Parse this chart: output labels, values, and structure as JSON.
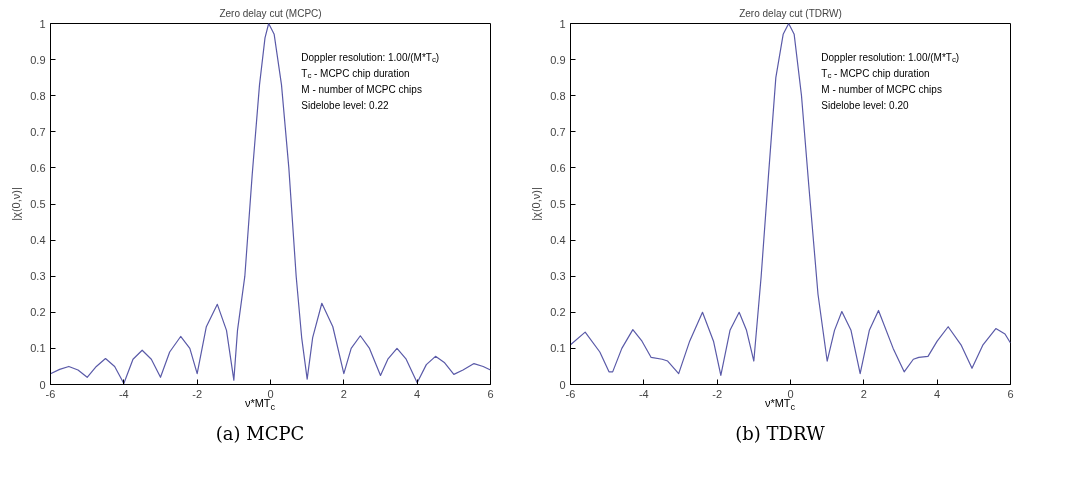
{
  "chart_data": [
    {
      "type": "line",
      "title": "Zero delay cut (MCPC)",
      "xlabel": "ν*MT$_{c}$",
      "ylabel": "|χ(0,ν)|",
      "x": [
        -6,
        -5.75,
        -5.5,
        -5.25,
        -5,
        -4.75,
        -4.5,
        -4.25,
        -4,
        -3.75,
        -3.5,
        -3.25,
        -3,
        -2.75,
        -2.45,
        -2.2,
        -2,
        -1.75,
        -1.45,
        -1.2,
        -1,
        -0.9,
        -0.7,
        -0.5,
        -0.3,
        -0.15,
        -0.05,
        0.1,
        0.3,
        0.5,
        0.7,
        0.85,
        1,
        1.15,
        1.4,
        1.7,
        2,
        2.2,
        2.45,
        2.7,
        3,
        3.2,
        3.45,
        3.7,
        4,
        4.25,
        4.5,
        4.75,
        5,
        5.25,
        5.55,
        5.8,
        6
      ],
      "series": [
        {
          "color": "#5a5aa8",
          "values": [
            0.03,
            0.042,
            0.05,
            0.04,
            0.02,
            0.05,
            0.072,
            0.05,
            0.003,
            0.07,
            0.095,
            0.07,
            0.02,
            0.09,
            0.133,
            0.1,
            0.03,
            0.16,
            0.222,
            0.15,
            0.012,
            0.15,
            0.3,
            0.58,
            0.83,
            0.96,
            1,
            0.97,
            0.83,
            0.6,
            0.3,
            0.13,
            0.015,
            0.13,
            0.225,
            0.16,
            0.03,
            0.1,
            0.135,
            0.1,
            0.025,
            0.07,
            0.1,
            0.07,
            0.005,
            0.055,
            0.078,
            0.06,
            0.028,
            0.04,
            0.058,
            0.05,
            0.04
          ]
        }
      ],
      "xlim": [
        -6,
        6
      ],
      "ylim": [
        0,
        1
      ],
      "xticks": [
        -6,
        -4,
        -2,
        0,
        2,
        4,
        6
      ],
      "yticks": [
        0,
        0.1,
        0.2,
        0.3,
        0.4,
        0.5,
        0.6,
        0.7,
        0.8,
        0.9,
        1
      ],
      "annotations": [
        "Doppler resolution: 1.00/(M*T$_{c}$)",
        "T$_{c}$ - MCPC chip duration",
        "M - number of MCPC chips",
        "Sidelobe level: 0.22",
        "(a) MCPC"
      ]
    },
    {
      "type": "line",
      "title": "Zero delay cut (TDRW)",
      "xlabel": "ν*MT$_{c}$",
      "ylabel": "|χ(0,ν)|",
      "x": [
        -6,
        -5.6,
        -5.2,
        -4.95,
        -4.85,
        -4.6,
        -4.3,
        -4.05,
        -3.8,
        -3.5,
        -3.35,
        -3.05,
        -2.75,
        -2.4,
        -2.1,
        -1.9,
        -1.65,
        -1.4,
        -1.2,
        -1,
        -0.8,
        -0.6,
        -0.4,
        -0.2,
        -0.05,
        0.1,
        0.3,
        0.5,
        0.75,
        1,
        1.2,
        1.4,
        1.65,
        1.9,
        2.15,
        2.4,
        2.8,
        3.1,
        3.35,
        3.5,
        3.75,
        4,
        4.3,
        4.65,
        4.95,
        5.25,
        5.6,
        5.85,
        6
      ],
      "series": [
        {
          "color": "#5a5aa8",
          "values": [
            0.11,
            0.145,
            0.09,
            0.035,
            0.035,
            0.1,
            0.152,
            0.12,
            0.075,
            0.07,
            0.065,
            0.03,
            0.12,
            0.2,
            0.12,
            0.025,
            0.15,
            0.2,
            0.15,
            0.065,
            0.3,
            0.58,
            0.85,
            0.97,
            1,
            0.97,
            0.8,
            0.55,
            0.25,
            0.065,
            0.15,
            0.202,
            0.15,
            0.03,
            0.15,
            0.205,
            0.1,
            0.035,
            0.07,
            0.075,
            0.078,
            0.12,
            0.16,
            0.11,
            0.045,
            0.11,
            0.155,
            0.14,
            0.115
          ]
        }
      ],
      "xlim": [
        -6,
        6
      ],
      "ylim": [
        0,
        1
      ],
      "xticks": [
        -6,
        -4,
        -2,
        0,
        2,
        4,
        6
      ],
      "yticks": [
        0,
        0.1,
        0.2,
        0.3,
        0.4,
        0.5,
        0.6,
        0.7,
        0.8,
        0.9,
        1
      ],
      "annotations": [
        "Doppler resolution: 1.00/(M*T$_{c}$)",
        "T$_{c}$ - MCPC chip duration",
        "M - number of MCPC chips",
        "Sidelobe level: 0.20",
        "(b) TDRW"
      ]
    }
  ]
}
